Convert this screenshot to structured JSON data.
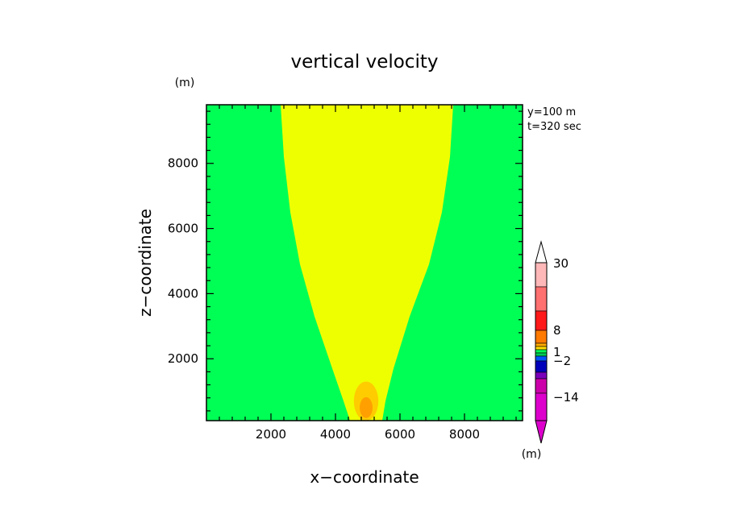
{
  "chart_data": {
    "type": "heatmap",
    "title": "vertical velocity",
    "xlabel": "x−coordinate",
    "ylabel": "z−coordinate",
    "y_unit": "(m)",
    "info_lines": [
      "y=100  m",
      "t=320  sec"
    ],
    "xlim": [
      0,
      9800
    ],
    "ylim": [
      100,
      9800
    ],
    "x_ticks": [
      2000,
      4000,
      6000,
      8000
    ],
    "y_ticks": [
      2000,
      4000,
      6000,
      8000
    ],
    "x_tick_labels": [
      "2000",
      "4000",
      "6000",
      "8000"
    ],
    "y_tick_labels": [
      "2000",
      "4000",
      "6000",
      "8000"
    ],
    "regions": [
      {
        "name": "background",
        "color": "#00ff55",
        "points": [
          [
            0,
            100
          ],
          [
            9800,
            100
          ],
          [
            9800,
            9800
          ],
          [
            0,
            9800
          ]
        ]
      },
      {
        "name": "plume",
        "color": "#eeff00",
        "points": [
          [
            4450,
            100
          ],
          [
            4250,
            700
          ],
          [
            3900,
            1700
          ],
          [
            3350,
            3300
          ],
          [
            2900,
            4900
          ],
          [
            2600,
            6500
          ],
          [
            2400,
            8200
          ],
          [
            2300,
            9800
          ],
          [
            7650,
            9800
          ],
          [
            7550,
            8200
          ],
          [
            7300,
            6500
          ],
          [
            6900,
            4900
          ],
          [
            6300,
            3300
          ],
          [
            5800,
            1700
          ],
          [
            5550,
            700
          ],
          [
            5450,
            100
          ]
        ]
      },
      {
        "name": "core-light-orange",
        "color": "#ffcc00",
        "ellipse": {
          "cx": 4950,
          "cy": 700,
          "rx": 380,
          "ry": 600
        }
      },
      {
        "name": "core-orange",
        "color": "#ffa000",
        "ellipse": {
          "cx": 4950,
          "cy": 500,
          "rx": 200,
          "ry": 320
        }
      }
    ],
    "colorbar": {
      "unit": "(m)",
      "labels": [
        "30",
        "8",
        "1",
        "−2",
        "−14"
      ],
      "segments": [
        "#ffffff",
        "#ffb8b8",
        "#ff7070",
        "#ff1a1a",
        "#ff7a00",
        "#ffaa00",
        "#ffdd00",
        "#00ff55",
        "#00cc55",
        "#0055ff",
        "#0000bb",
        "#7a00bb",
        "#cc00aa",
        "#dd00cc"
      ]
    }
  }
}
